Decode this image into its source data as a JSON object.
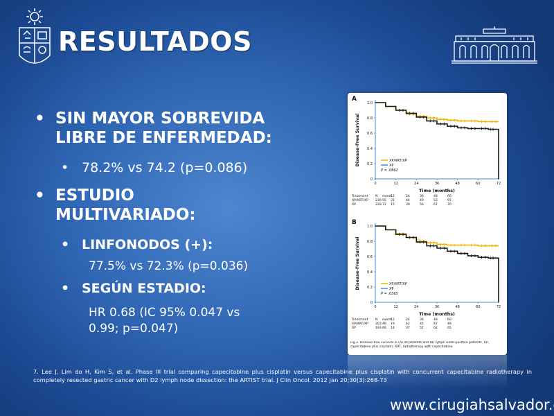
{
  "slide": {
    "title": "RESULTADOS",
    "bullets": {
      "b1": "SIN MAYOR SOBREVIDA LIBRE DE ENFERMEDAD:",
      "b1_line1": "SIN MAYOR SOBREVIDA",
      "b1_line2": "LIBRE DE ENFERMEDAD:",
      "b1_sub": "78.2% vs 74.2 (p=0.086)",
      "b2_line1": "ESTUDIO",
      "b2_line2": "MULTIVARIADO:",
      "b2_sub1": "LINFONODOS (+):",
      "b2_sub1_detail": "77.5% vs 72.3% (p=0.036)",
      "b2_sub2": "SEGÚN ESTADIO:",
      "b2_sub2_detail_line1": "HR 0.68 (IC 95% 0.047 vs",
      "b2_sub2_detail_line2": "0.99; p=0.047)"
    },
    "reference": "7. Lee J, Lim do H, Kim S, et al. Phase III trial comparing capecitabine plus cisplatin versus capecitabine plus cisplatin with concurrent capecitabine radiotherapy in completely resected gastric cancer with D2 lymph node dissection: the ARTIST trial. J Clin Oncol. 2012 Jan 20;30(3):268-73",
    "website": "www.cirugiahsalvador.cl",
    "bullet_glyph": "•"
  },
  "figure": {
    "panel_a": {
      "label": "A",
      "y_label": "Disease-Free Survival",
      "x_label": "Time (months)",
      "y_ticks": [
        "1.0",
        "0.8",
        "0.6",
        "0.4",
        "0.2",
        "0"
      ],
      "x_ticks": [
        "0",
        "12",
        "24",
        "36",
        "48",
        "60",
        "72"
      ],
      "legend": [
        "XP/XRT/XP",
        "XP"
      ],
      "p_value": "P = .0862",
      "table_header": [
        "Treatment",
        "N",
        "event",
        "12",
        "24",
        "36",
        "48",
        "60"
      ],
      "table_rows": [
        [
          "XP/XRT/XP",
          "230",
          "55",
          "21",
          "44",
          "49",
          "53",
          "55"
        ],
        [
          "XP",
          "228",
          "72",
          "15",
          "39",
          "56",
          "67",
          "70"
        ]
      ]
    },
    "panel_b": {
      "label": "B",
      "y_label": "Disease-Free Survival",
      "x_label": "Time (months)",
      "y_ticks": [
        "1.0",
        "0.8",
        "0.6",
        "0.4",
        "0.2",
        "0"
      ],
      "x_ticks": [
        "0",
        "12",
        "24",
        "36",
        "48",
        "60",
        "72"
      ],
      "legend": [
        "XP/XRT/XP",
        "XP"
      ],
      "p_value": "P = .0365",
      "table_header": [
        "Treatment",
        "N",
        "event",
        "12",
        "24",
        "36",
        "48",
        "60"
      ],
      "table_rows": [
        [
          "XP/XRT/XP",
          "203",
          "49",
          "19",
          "42",
          "45",
          "47",
          "49"
        ],
        [
          "XP",
          "193",
          "66",
          "14",
          "37",
          "51",
          "62",
          "65"
        ]
      ]
    },
    "caption": "Fig 2. Disease-free survival in (A) all patients and (B) lymph node-positive patients. XP, capecitabine plus cisplatin; XRT, radiotherapy with capecitabine."
  },
  "chart_data": [
    {
      "type": "line",
      "title": "A",
      "xlabel": "Time (months)",
      "ylabel": "Disease-Free Survival",
      "xlim": [
        0,
        72
      ],
      "ylim": [
        0,
        1.0
      ],
      "series": [
        {
          "name": "XP/XRT/XP",
          "x": [
            0,
            6,
            12,
            18,
            24,
            30,
            36,
            42,
            48,
            54,
            60,
            66,
            72
          ],
          "y": [
            1.0,
            0.95,
            0.9,
            0.85,
            0.82,
            0.8,
            0.78,
            0.77,
            0.76,
            0.76,
            0.75,
            0.75,
            0.75
          ]
        },
        {
          "name": "XP",
          "x": [
            0,
            6,
            12,
            18,
            24,
            30,
            36,
            42,
            48,
            54,
            60,
            66,
            70,
            72
          ],
          "y": [
            1.0,
            0.95,
            0.9,
            0.86,
            0.81,
            0.76,
            0.72,
            0.69,
            0.67,
            0.66,
            0.66,
            0.65,
            0.65,
            0.0
          ]
        }
      ]
    },
    {
      "type": "line",
      "title": "B",
      "xlabel": "Time (months)",
      "ylabel": "Disease-Free Survival",
      "xlim": [
        0,
        72
      ],
      "ylim": [
        0,
        1.0
      ],
      "series": [
        {
          "name": "XP/XRT/XP",
          "x": [
            0,
            6,
            12,
            18,
            24,
            30,
            36,
            42,
            48,
            54,
            60,
            66,
            72
          ],
          "y": [
            1.0,
            0.95,
            0.9,
            0.85,
            0.8,
            0.78,
            0.76,
            0.75,
            0.75,
            0.75,
            0.74,
            0.74,
            0.74
          ]
        },
        {
          "name": "XP",
          "x": [
            0,
            6,
            12,
            18,
            24,
            30,
            36,
            42,
            48,
            54,
            60,
            66,
            70,
            72
          ],
          "y": [
            1.0,
            0.95,
            0.89,
            0.85,
            0.79,
            0.74,
            0.71,
            0.67,
            0.64,
            0.61,
            0.59,
            0.58,
            0.58,
            0.0
          ]
        }
      ]
    }
  ],
  "colors": {
    "background": "#2f66b4",
    "text": "#ffffff",
    "series_a": "#f0b400",
    "series_b": "#1a1a1a",
    "axis_blue": "#3f8fd9"
  },
  "icons": {
    "logo_left": "university-star-crest-icon",
    "logo_right": "hospital-building-icon"
  }
}
